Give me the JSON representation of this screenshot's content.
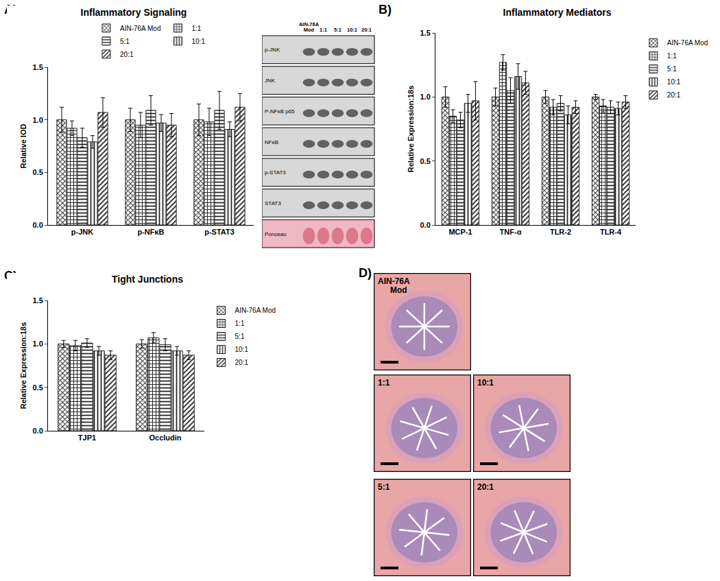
{
  "panel_labels": [
    "A)",
    "B)",
    "C)",
    "D)"
  ],
  "chart_data": [
    {
      "type": "bar",
      "title": "Inflammatory Signaling",
      "y_label": "Relative IOD",
      "categories": [
        "p-JNK",
        "p-NFκB",
        "p-STAT3"
      ],
      "series": [
        {
          "name": "AIN-76A Mod",
          "color": "#222222",
          "values": [
            1.0,
            1.0,
            1.0
          ],
          "errors": [
            0.12,
            0.11,
            0.15
          ]
        },
        {
          "name": "1:1",
          "color": "#222222",
          "values": [
            0.92,
            0.95,
            0.98
          ],
          "errors": [
            0.07,
            0.12,
            0.13
          ]
        },
        {
          "name": "5:1",
          "color": "#222222",
          "values": [
            0.83,
            1.09,
            1.09
          ],
          "errors": [
            0.09,
            0.14,
            0.18
          ]
        },
        {
          "name": "10:1",
          "color": "#222222",
          "values": [
            0.79,
            0.97,
            0.91
          ],
          "errors": [
            0.06,
            0.08,
            0.07
          ]
        },
        {
          "name": "20:1",
          "color": "#222222",
          "values": [
            1.07,
            0.95,
            1.12
          ],
          "errors": [
            0.14,
            0.11,
            0.13
          ]
        }
      ],
      "ylim": [
        0,
        1.5
      ],
      "yticks": [
        {
          "value": 0,
          "label": "0.0"
        },
        {
          "value": 0.5,
          "label": "0.5"
        },
        {
          "value": 1,
          "label": "1.0"
        },
        {
          "value": 1.5,
          "label": "1.5"
        }
      ],
      "legend": "top"
    },
    {
      "type": "bar",
      "title": "Inflammatory Mediators",
      "y_label": "Relative Expression:18s",
      "categories": [
        "MCP-1",
        "TNF-α",
        "TLR-2",
        "TLR-4"
      ],
      "series": [
        {
          "name": "AIN-76A Mod",
          "color": "#222222",
          "values": [
            1.0,
            1.0,
            1.0,
            1.0
          ],
          "errors": [
            0.08,
            0.07,
            0.05,
            0.02
          ]
        },
        {
          "name": "1:1",
          "color": "#222222",
          "values": [
            0.85,
            1.27,
            0.92,
            0.93
          ],
          "errors": [
            0.05,
            0.06,
            0.06,
            0.05
          ]
        },
        {
          "name": "5:1",
          "color": "#222222",
          "values": [
            0.82,
            1.05,
            0.95,
            0.92
          ],
          "errors": [
            0.06,
            0.1,
            0.06,
            0.05
          ]
        },
        {
          "name": "10:1",
          "color": "#222222",
          "values": [
            0.95,
            1.16,
            0.86,
            0.91
          ],
          "errors": [
            0.07,
            0.1,
            0.07,
            0.05
          ]
        },
        {
          "name": "20:1",
          "color": "#222222",
          "values": [
            0.97,
            1.11,
            0.92,
            0.96
          ],
          "errors": [
            0.15,
            0.09,
            0.05,
            0.05
          ]
        }
      ],
      "ylim": [
        0,
        1.5
      ],
      "yticks": [
        {
          "value": 0,
          "label": "0.0"
        },
        {
          "value": 0.5,
          "label": "0.5"
        },
        {
          "value": 1,
          "label": "1.0"
        },
        {
          "value": 1.5,
          "label": "1.5"
        }
      ],
      "legend": "right"
    },
    {
      "type": "bar",
      "title": "Tight Junctions",
      "y_label": "Relative Expression:18s",
      "categories": [
        "TJP1",
        "Occludin"
      ],
      "series": [
        {
          "name": "AIN-76A Mod",
          "color": "#222222",
          "values": [
            1.0,
            1.0
          ],
          "errors": [
            0.04,
            0.05
          ]
        },
        {
          "name": "1:1",
          "color": "#222222",
          "values": [
            0.98,
            1.07
          ],
          "errors": [
            0.06,
            0.06
          ]
        },
        {
          "name": "5:1",
          "color": "#222222",
          "values": [
            1.01,
            0.99
          ],
          "errors": [
            0.05,
            0.07
          ]
        },
        {
          "name": "10:1",
          "color": "#222222",
          "values": [
            0.92,
            0.92
          ],
          "errors": [
            0.05,
            0.05
          ]
        },
        {
          "name": "20:1",
          "color": "#222222",
          "values": [
            0.87,
            0.87
          ],
          "errors": [
            0.05,
            0.05
          ]
        }
      ],
      "ylim": [
        0,
        1.5
      ],
      "yticks": [
        {
          "value": 0,
          "label": "0.0"
        },
        {
          "value": 0.5,
          "label": "0.5"
        },
        {
          "value": 1,
          "label": "1.0"
        },
        {
          "value": 1.5,
          "label": "1.5"
        }
      ],
      "legend": "right"
    }
  ],
  "blot": {
    "lanes": [
      "AIN-76A Mod",
      "1:1",
      "5:1",
      "10:1",
      "20:1"
    ],
    "rows": [
      "p-JNK",
      "JNK",
      "P-NFκB p65",
      "NFκB",
      "p-STAT3",
      "STAT3",
      "Ponceau"
    ]
  },
  "histology": {
    "panels": [
      "AIN-76A Mod",
      "1:1",
      "10:1",
      "5:1",
      "20:1"
    ]
  }
}
